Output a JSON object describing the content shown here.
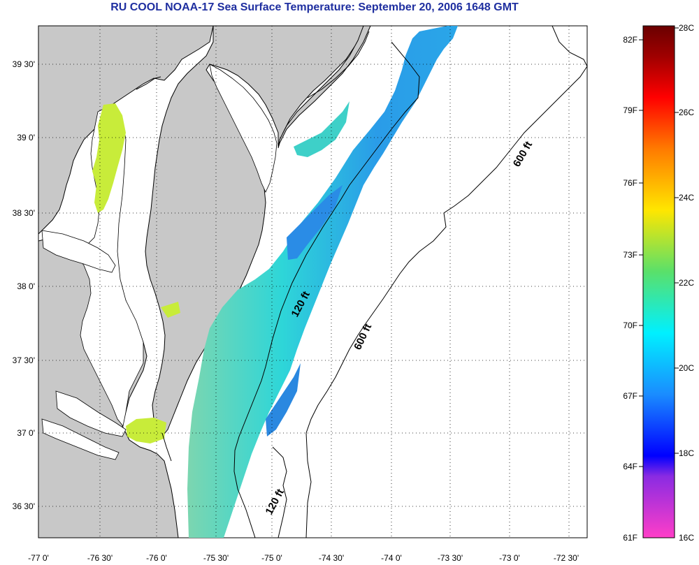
{
  "title": "RU COOL  NOAA-17  Sea Surface Temperature:  September 20, 2006 1648 GMT",
  "axes": {
    "x_ticks": [
      "-77 0'",
      "-76 30'",
      "-76 0'",
      "-75 30'",
      "-75 0'",
      "-74 30'",
      "-74 0'",
      "-73 30'",
      "-73 0'",
      "-72 30'"
    ],
    "y_ticks": [
      "39 30'",
      "39 0'",
      "38 30'",
      "38 0'",
      "37 30'",
      "37 0'",
      "36 30'"
    ]
  },
  "contour_labels": [
    "600 ft",
    "600 ft",
    "120 ft",
    "120 ft"
  ],
  "colorbar": {
    "f_labels": [
      "82F",
      "79F",
      "76F",
      "73F",
      "70F",
      "67F",
      "64F",
      "61F"
    ],
    "c_labels": [
      "28C",
      "26C",
      "24C",
      "22C",
      "20C",
      "18C",
      "16C"
    ]
  },
  "colors": {
    "title": "#1f2fa0",
    "land": "#c8c8c8",
    "water": "#ffffff",
    "sst_cool": "#2a8ce6",
    "sst_mid": "#2ad0e8",
    "sst_warm": "#c8ec3a"
  }
}
